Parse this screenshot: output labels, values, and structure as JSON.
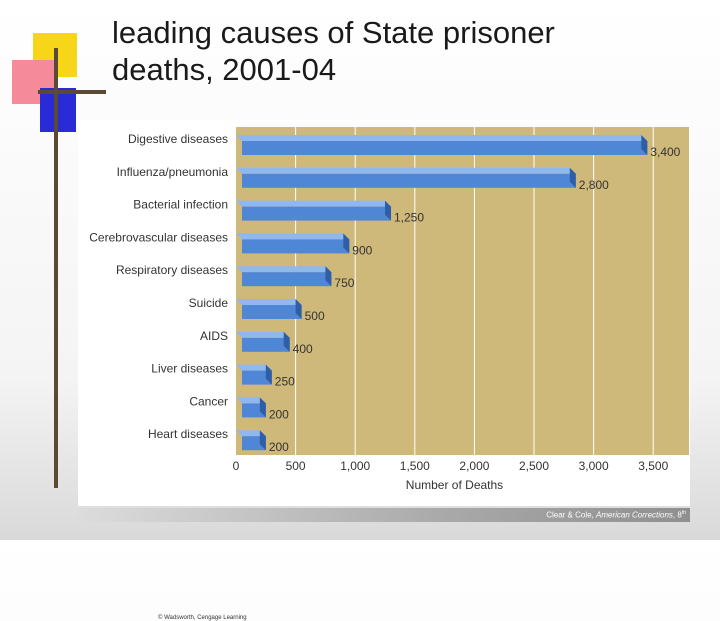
{
  "title": {
    "line1": "leading causes of State prisoner",
    "line2": "deaths, 2001-04"
  },
  "credit": "© Wadsworth, Cengage Learning",
  "footer": {
    "prefix": "Clear & Cole, ",
    "book": "American Corrections",
    "suffix": ", 8",
    "sup": "th"
  },
  "colors": {
    "plot_bg": "#cfb97a",
    "bar_face": "#4f86d6",
    "bar_top": "#8fb8ee",
    "bar_side": "#2f5ea6",
    "gridline": "#ffffff",
    "accent_yellow": "#f7d61a",
    "accent_pink": "#f58b9a",
    "accent_blue": "#2a2bd6"
  },
  "chart_data": {
    "type": "bar",
    "orientation": "horizontal",
    "categories": [
      "Digestive diseases",
      "Influenza/pneumonia",
      "Bacterial infection",
      "Cerebrovascular diseases",
      "Respiratory diseases",
      "Suicide",
      "AIDS",
      "Liver diseases",
      "Cancer",
      "Heart diseases"
    ],
    "values": [
      3400,
      2800,
      1250,
      900,
      750,
      500,
      400,
      250,
      200,
      200
    ],
    "value_labels": [
      "3,400",
      "2,800",
      "1,250",
      "900",
      "750",
      "500",
      "400",
      "250",
      "200",
      "200"
    ],
    "xlabel": "Number of Deaths",
    "ylabel": "",
    "xlim": [
      0,
      3800
    ],
    "xticks": [
      0,
      500,
      1000,
      1500,
      2000,
      2500,
      3000,
      3500
    ],
    "xtick_labels": [
      "0",
      "500",
      "1,000",
      "1,500",
      "2,000",
      "2,500",
      "3,000",
      "3,500"
    ],
    "grid": true,
    "style": "3d"
  }
}
